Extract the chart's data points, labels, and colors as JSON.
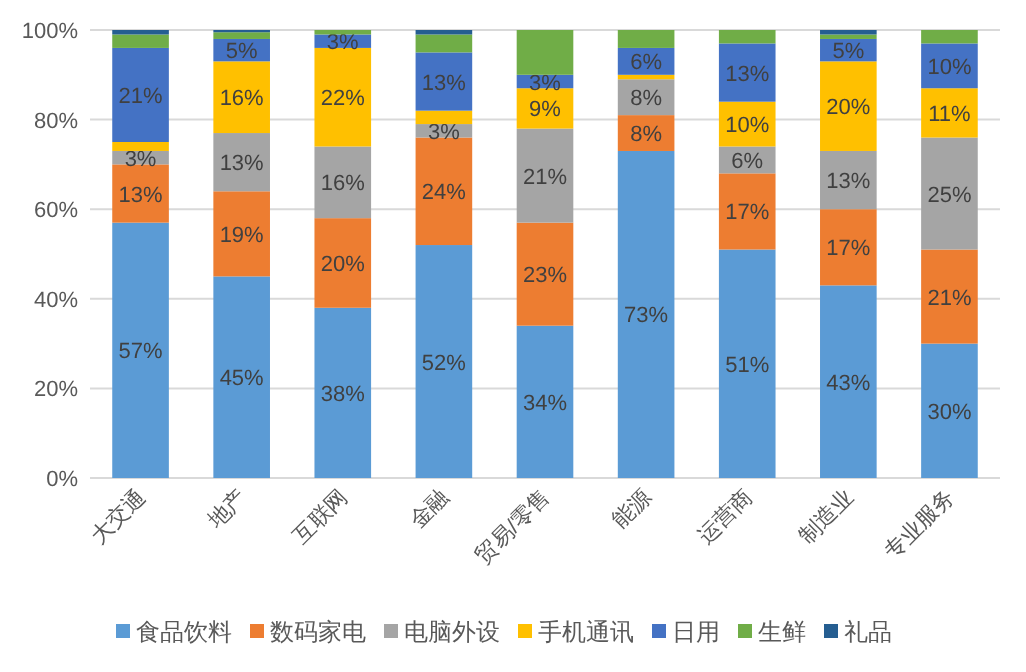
{
  "chart_data": {
    "type": "bar",
    "stacked": true,
    "categories": [
      "大交通",
      "地产",
      "互联网",
      "金融",
      "贸易/零售",
      "能源",
      "运营商",
      "制造业",
      "专业服务"
    ],
    "series": [
      {
        "name": "食品饮料",
        "color": "#5b9bd5",
        "values": [
          57,
          45,
          38,
          52,
          34,
          73,
          51,
          43,
          30
        ],
        "value_labels": [
          "57%",
          "45%",
          "38%",
          "52%",
          "34%",
          "73%",
          "51%",
          "43%",
          "30%"
        ]
      },
      {
        "name": "数码家电",
        "color": "#ed7d31",
        "values": [
          13,
          19,
          20,
          24,
          23,
          8,
          17,
          17,
          21
        ],
        "value_labels": [
          "13%",
          "19%",
          "20%",
          "24%",
          "23%",
          "8%",
          "17%",
          "17%",
          "21%"
        ]
      },
      {
        "name": "电脑外设",
        "color": "#a5a5a5",
        "values": [
          3,
          13,
          16,
          3,
          21,
          8,
          6,
          13,
          25
        ],
        "value_labels": [
          "3%",
          "13%",
          "16%",
          "3%",
          "21%",
          "8%",
          "6%",
          "13%",
          "25%"
        ]
      },
      {
        "name": "手机通讯",
        "color": "#ffc000",
        "values": [
          2,
          16,
          22,
          3,
          9,
          1,
          10,
          20,
          11
        ],
        "value_labels": [
          null,
          "16%",
          "22%",
          null,
          "9%",
          null,
          "10%",
          "20%",
          "11%"
        ]
      },
      {
        "name": "日用",
        "color": "#4472c4",
        "values": [
          21,
          5,
          3,
          13,
          3,
          6,
          13,
          5,
          10
        ],
        "value_labels": [
          "21%",
          "5%",
          "3%",
          "13%",
          "3%",
          "6%",
          "13%",
          "5%",
          "10%"
        ]
      },
      {
        "name": "生鲜",
        "color": "#70ad47",
        "values": [
          3,
          1.5,
          1,
          4,
          10,
          4,
          3,
          1,
          3
        ],
        "value_labels": [
          null,
          null,
          null,
          null,
          null,
          null,
          null,
          null,
          null
        ]
      },
      {
        "name": "礼品",
        "color": "#255e91",
        "values": [
          1,
          0.5,
          0,
          1,
          0,
          0,
          0,
          1,
          0
        ],
        "value_labels": [
          null,
          null,
          null,
          null,
          null,
          null,
          null,
          null,
          null
        ]
      }
    ],
    "ylim": [
      0,
      100
    ],
    "yticks": [
      {
        "value": 0,
        "label": "0%"
      },
      {
        "value": 20,
        "label": "20%"
      },
      {
        "value": 40,
        "label": "40%"
      },
      {
        "value": 60,
        "label": "60%"
      },
      {
        "value": 80,
        "label": "80%"
      },
      {
        "value": 100,
        "label": "100%"
      }
    ],
    "grid": "y",
    "legend": "bottom"
  }
}
